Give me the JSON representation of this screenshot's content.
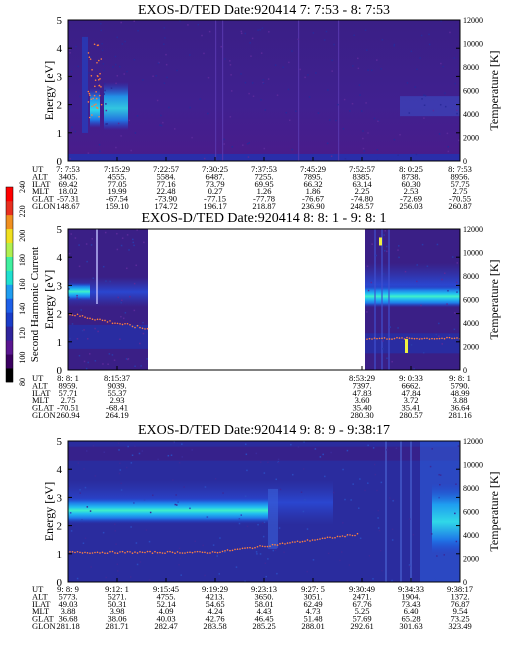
{
  "colorbar": {
    "label": "Second Harmonic Current",
    "ticks": [
      "80",
      "100",
      "120",
      "140",
      "160",
      "180",
      "200",
      "220",
      "240"
    ],
    "colors": [
      "#000000",
      "#3a0060",
      "#5a1690",
      "#30249c",
      "#1a3cc8",
      "#1d5fe8",
      "#1f9df0",
      "#1fe0d0",
      "#40f0a0",
      "#b0f050",
      "#f0e020",
      "#f09020",
      "#e83020",
      "#ff0000"
    ]
  },
  "panels": [
    {
      "title": "EXOS-D/TED   Date:920414  7: 7:53 - 8: 7:53",
      "ylabel": "Energy [eV]",
      "y2label": "Temperature [K]",
      "yticks": [
        "0",
        "1",
        "2",
        "3",
        "4",
        "5"
      ],
      "y2ticks": [
        "0",
        "2000",
        "4000",
        "6000",
        "8000",
        "10000",
        "12000"
      ],
      "table": {
        "labels": [
          "UT",
          "ALT",
          "ILAT",
          "MLT",
          "GLAT",
          "GLON"
        ],
        "columns": [
          [
            "7: 7:53",
            "3405.",
            "69.42",
            "18.02",
            "-57.31",
            "148.67"
          ],
          [
            "7:15:29",
            "4555.",
            "77.05",
            "19.99",
            "-67.54",
            "159.10"
          ],
          [
            "7:22:57",
            "5584.",
            "77.16",
            "22.48",
            "-73.90",
            "174.72"
          ],
          [
            "7:30:25",
            "6487.",
            "73.79",
            "0.27",
            "-77.15",
            "196.17"
          ],
          [
            "7:37:53",
            "7255.",
            "69.95",
            "1.26",
            "-77.78",
            "218.87"
          ],
          [
            "7:45:29",
            "7895.",
            "66.32",
            "1.86",
            "-76.67",
            "236.90"
          ],
          [
            "7:52:57",
            "8385.",
            "63.14",
            "2.25",
            "-74.80",
            "248.57"
          ],
          [
            "8: 0:25",
            "8738.",
            "60.30",
            "2.53",
            "-72.69",
            "256.03"
          ],
          [
            "8: 7:53",
            "8956.",
            "57.75",
            "2.75",
            "-70.55",
            "260.87"
          ]
        ]
      }
    },
    {
      "title": "EXOS-D/TED   Date:920414  8: 8: 1 - 9: 8: 1",
      "ylabel": "Energy [eV]",
      "y2label": "Temperature [K]",
      "yticks": [
        "0",
        "1",
        "2",
        "3",
        "4",
        "5"
      ],
      "y2ticks": [
        "0",
        "2000",
        "4000",
        "6000",
        "8000",
        "10000",
        "12000"
      ],
      "table": {
        "labels": [
          "UT",
          "ALT",
          "ILAT",
          "MLT",
          "GLAT",
          "GLON"
        ],
        "columns": [
          [
            "8: 8: 1",
            "8959.",
            "57.71",
            "2.75",
            "-70.51",
            "260.94"
          ],
          [
            "8:15:37",
            "9039.",
            "55.37",
            "2.93",
            "-68.41",
            "264.19"
          ],
          [
            "8:53:29",
            "7397.",
            "47.83",
            "3.60",
            "35.40",
            "280.30"
          ],
          [
            "9: 0:33",
            "6662.",
            "47.84",
            "3.72",
            "35.41",
            "280.57"
          ],
          [
            "9: 8: 1",
            "5790.",
            "48.99",
            "3.88",
            "36.64",
            "281.16"
          ]
        ]
      }
    },
    {
      "title": "EXOS-D/TED   Date:920414  9: 8: 9 - 9:38:17",
      "ylabel": "Energy [eV]",
      "y2label": "Temperature [K]",
      "yticks": [
        "0",
        "1",
        "2",
        "3",
        "4",
        "5"
      ],
      "y2ticks": [
        "0",
        "2000",
        "4000",
        "6000",
        "8000",
        "10000",
        "12000"
      ],
      "table": {
        "labels": [
          "UT",
          "ALT",
          "ILAT",
          "MLT",
          "GLAT",
          "GLON"
        ],
        "columns": [
          [
            "9: 8: 9",
            "5773.",
            "49.03",
            "3.88",
            "36.68",
            "281.18"
          ],
          [
            "9:12: 1",
            "5271.",
            "50.31",
            "3.98",
            "38.06",
            "281.71"
          ],
          [
            "9:15:45",
            "4755.",
            "52.14",
            "4.09",
            "40.03",
            "282.47"
          ],
          [
            "9:19:29",
            "4213.",
            "54.65",
            "4.24",
            "42.76",
            "283.58"
          ],
          [
            "9:23:13",
            "3650.",
            "58.01",
            "4.43",
            "46.45",
            "285.25"
          ],
          [
            "9:27: 5",
            "3051.",
            "62.49",
            "4.73",
            "51.48",
            "288.01"
          ],
          [
            "9:30:49",
            "2471.",
            "67.76",
            "5.25",
            "57.69",
            "292.61"
          ],
          [
            "9:34:33",
            "1904.",
            "73.43",
            "6.40",
            "65.28",
            "301.63"
          ],
          [
            "9:38:17",
            "1372.",
            "76.87",
            "9.54",
            "73.25",
            "323.49"
          ]
        ]
      }
    }
  ],
  "chart_data": [
    {
      "type": "heatmap",
      "title": "EXOS-D/TED   Date:920414  7: 7:53 - 8: 7:53",
      "xlabel": "",
      "ylabel": "Energy [eV]",
      "y2label": "Temperature [K]",
      "ylim": [
        0,
        5
      ],
      "y2lim": [
        0,
        12000
      ],
      "colorbar_label": "Second Harmonic Current",
      "colorbar_range": [
        80,
        240
      ],
      "x_ticks": [
        "7: 7:53",
        "7:15:29",
        "7:22:57",
        "7:30:25",
        "7:37:53",
        "7:45:29",
        "7:52:57",
        "8: 0:25",
        "8: 7:53"
      ]
    },
    {
      "type": "heatmap",
      "title": "EXOS-D/TED   Date:920414  8: 8: 1 - 9: 8: 1",
      "xlabel": "",
      "ylabel": "Energy [eV]",
      "y2label": "Temperature [K]",
      "ylim": [
        0,
        5
      ],
      "y2lim": [
        0,
        12000
      ],
      "colorbar_label": "Second Harmonic Current",
      "colorbar_range": [
        80,
        240
      ],
      "x_ticks": [
        "8: 8: 1",
        "8:15:37",
        "8:53:29",
        "9: 0:33",
        "9: 8: 1"
      ]
    },
    {
      "type": "heatmap",
      "title": "EXOS-D/TED   Date:920414  9: 8: 9 - 9:38:17",
      "xlabel": "",
      "ylabel": "Energy [eV]",
      "y2label": "Temperature [K]",
      "ylim": [
        0,
        5
      ],
      "y2lim": [
        0,
        12000
      ],
      "colorbar_label": "Second Harmonic Current",
      "colorbar_range": [
        80,
        240
      ],
      "x_ticks": [
        "9: 8: 9",
        "9:12: 1",
        "9:15:45",
        "9:19:29",
        "9:23:13",
        "9:27: 5",
        "9:30:49",
        "9:34:33",
        "9:38:17"
      ]
    }
  ]
}
